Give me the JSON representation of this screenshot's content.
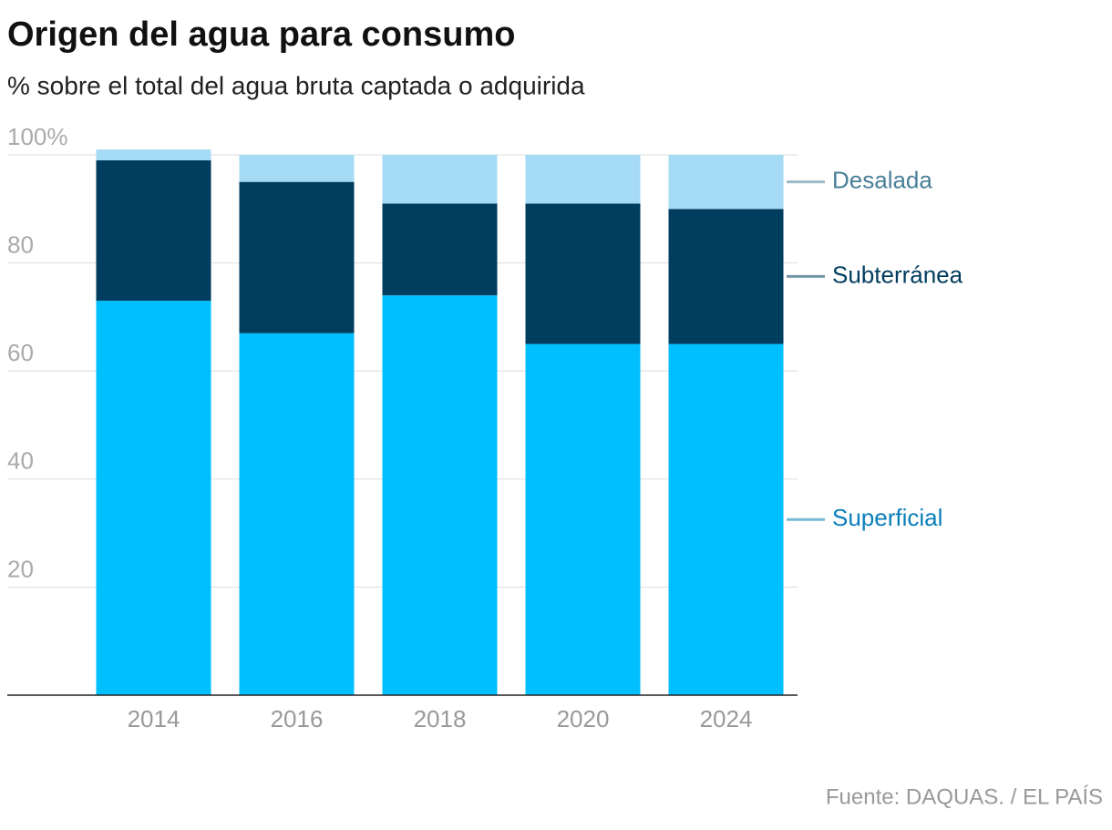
{
  "chart_data": {
    "type": "stacked_bar",
    "title": "Origen del agua para consumo",
    "subtitle": "% sobre el total del agua bruta captada o adquirida",
    "source": "Fuente: DAQUAS. / EL PAÍS",
    "categories": [
      "2014",
      "2016",
      "2018",
      "2020",
      "2024"
    ],
    "series": [
      {
        "name": "Superficial",
        "color": "#00bfff",
        "label_color": "#0a7fb8",
        "values": [
          73,
          67,
          74,
          65,
          65
        ]
      },
      {
        "name": "Subterránea",
        "color": "#003d5f",
        "label_color": "#003d5f",
        "values": [
          26,
          28,
          17,
          26,
          25
        ]
      },
      {
        "name": "Desalada",
        "color": "#a6dbf5",
        "label_color": "#4a7f99",
        "values": [
          2,
          5,
          9,
          9,
          10
        ]
      }
    ],
    "ylim": [
      0,
      100
    ],
    "yticks": [
      20,
      40,
      60,
      80,
      {
        "value": 100,
        "label": "100%"
      }
    ],
    "grid": true,
    "legend_position": "right"
  }
}
